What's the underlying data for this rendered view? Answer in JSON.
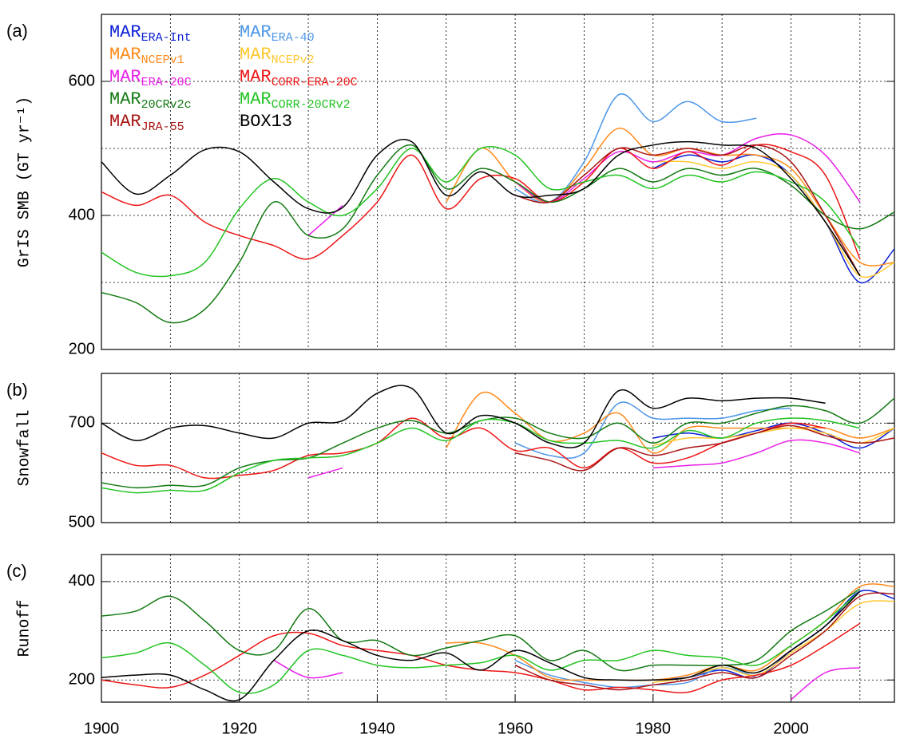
{
  "chart_data": [
    {
      "type": "line",
      "label": "(a)",
      "y_label": "GrIS SMB (GT yr⁻¹)",
      "legend": "upper left",
      "x": [
        1900,
        1905,
        1910,
        1915,
        1920,
        1925,
        1930,
        1935,
        1940,
        1945,
        1950,
        1955,
        1960,
        1965,
        1970,
        1975,
        1980,
        1985,
        1990,
        1995,
        2000,
        2005,
        2010,
        2015
      ],
      "xlim": [
        1900,
        2015
      ],
      "xgrid": [
        1910,
        1920,
        1930,
        1940,
        1950,
        1960,
        1970,
        1980,
        1990,
        2000,
        2010
      ],
      "ylim": [
        200,
        700
      ],
      "yticks": [
        200,
        400,
        600
      ],
      "yminor": [
        300,
        500,
        700
      ],
      "grid": true,
      "series": [
        {
          "name": "MAR",
          "sub": "ERA-Int",
          "color": "#0a1fd6",
          "values": [
            null,
            null,
            null,
            null,
            null,
            null,
            null,
            null,
            null,
            null,
            null,
            null,
            null,
            null,
            null,
            null,
            470,
            490,
            480,
            490,
            460,
            390,
            300,
            350
          ]
        },
        {
          "name": "MAR",
          "sub": "ERA-40",
          "color": "#4c96e8",
          "values": [
            null,
            null,
            null,
            null,
            null,
            null,
            null,
            null,
            null,
            null,
            null,
            null,
            440,
            420,
            480,
            580,
            540,
            570,
            540,
            545,
            null,
            null,
            null,
            null
          ]
        },
        {
          "name": "MAR",
          "sub": "NCEPv1",
          "color": "#ff8a1a",
          "values": [
            null,
            null,
            null,
            null,
            null,
            null,
            null,
            null,
            null,
            null,
            420,
            500,
            450,
            420,
            470,
            530,
            490,
            500,
            490,
            490,
            470,
            400,
            330,
            330
          ]
        },
        {
          "name": "MAR",
          "sub": "NCEPv2",
          "color": "#ffc830",
          "values": [
            null,
            null,
            null,
            null,
            null,
            null,
            null,
            null,
            null,
            null,
            null,
            null,
            null,
            null,
            null,
            null,
            480,
            480,
            470,
            480,
            460,
            390,
            310,
            330
          ]
        },
        {
          "name": "MAR",
          "sub": "ERA-20C",
          "color": "#e81ee8",
          "values": [
            null,
            null,
            null,
            null,
            null,
            null,
            370,
            415,
            null,
            null,
            null,
            null,
            450,
            420,
            455,
            495,
            480,
            495,
            490,
            515,
            520,
            490,
            420,
            null
          ]
        },
        {
          "name": "MAR",
          "sub": "CORR-ERA-20C",
          "color": "#ee1515",
          "values": [
            435,
            415,
            430,
            390,
            370,
            355,
            335,
            370,
            420,
            490,
            410,
            455,
            455,
            420,
            450,
            500,
            470,
            495,
            475,
            505,
            495,
            460,
            335,
            null
          ]
        },
        {
          "name": "MAR",
          "sub": "20CRv2c",
          "color": "#137a13",
          "values": [
            285,
            270,
            240,
            260,
            330,
            420,
            370,
            380,
            460,
            505,
            440,
            470,
            450,
            420,
            440,
            470,
            450,
            470,
            460,
            470,
            445,
            400,
            380,
            405
          ]
        },
        {
          "name": "MAR",
          "sub": "CORR-20CRv2",
          "color": "#22c422",
          "values": [
            345,
            315,
            310,
            330,
            410,
            455,
            420,
            400,
            440,
            500,
            450,
            500,
            490,
            440,
            450,
            460,
            440,
            460,
            450,
            465,
            450,
            420,
            350,
            null
          ]
        },
        {
          "name": "MAR",
          "sub": "JRA-55",
          "color": "#a81414",
          "values": [
            null,
            null,
            null,
            null,
            null,
            null,
            null,
            null,
            null,
            null,
            null,
            null,
            430,
            420,
            460,
            500,
            490,
            500,
            490,
            505,
            480,
            400,
            310,
            null
          ]
        },
        {
          "name": "BOX13",
          "color": "#000000",
          "values": [
            480,
            432,
            460,
            498,
            495,
            450,
            410,
            412,
            490,
            510,
            430,
            465,
            430,
            430,
            440,
            490,
            505,
            510,
            505,
            500,
            455,
            390,
            310,
            null
          ]
        }
      ]
    },
    {
      "type": "line",
      "label": "(b)",
      "y_label": "Snowfall",
      "x": [
        1900,
        1905,
        1910,
        1915,
        1920,
        1925,
        1930,
        1935,
        1940,
        1945,
        1950,
        1955,
        1960,
        1965,
        1970,
        1975,
        1980,
        1985,
        1990,
        1995,
        2000,
        2005,
        2010,
        2015
      ],
      "xlim": [
        1900,
        2015
      ],
      "xgrid": [
        1910,
        1920,
        1930,
        1940,
        1950,
        1960,
        1970,
        1980,
        1990,
        2000,
        2010
      ],
      "ylim": [
        500,
        800
      ],
      "yticks": [
        500,
        700
      ],
      "yminor": [
        600
      ],
      "grid": true,
      "series": [
        {
          "color": "#0a1fd6",
          "values": [
            null,
            null,
            null,
            null,
            null,
            null,
            null,
            null,
            null,
            null,
            null,
            null,
            null,
            null,
            null,
            null,
            670,
            680,
            670,
            685,
            700,
            680,
            650,
            690
          ]
        },
        {
          "color": "#4c96e8",
          "values": [
            null,
            null,
            null,
            null,
            null,
            null,
            null,
            null,
            null,
            null,
            null,
            null,
            660,
            635,
            640,
            740,
            710,
            710,
            710,
            725,
            730,
            null,
            null,
            null
          ]
        },
        {
          "color": "#ff8a1a",
          "values": [
            null,
            null,
            null,
            null,
            null,
            null,
            null,
            null,
            null,
            null,
            650,
            760,
            720,
            665,
            680,
            720,
            640,
            690,
            690,
            690,
            690,
            690,
            670,
            690
          ]
        },
        {
          "color": "#ffc830",
          "values": [
            null,
            null,
            null,
            null,
            null,
            null,
            null,
            null,
            null,
            null,
            null,
            null,
            null,
            null,
            null,
            null,
            655,
            670,
            670,
            680,
            690,
            680,
            660,
            690
          ]
        },
        {
          "color": "#e81ee8",
          "values": [
            null,
            null,
            null,
            null,
            null,
            null,
            590,
            610,
            null,
            null,
            null,
            null,
            null,
            null,
            null,
            null,
            610,
            615,
            620,
            640,
            665,
            660,
            640,
            null
          ]
        },
        {
          "color": "#ee1515",
          "values": [
            640,
            615,
            615,
            590,
            595,
            605,
            635,
            640,
            660,
            710,
            670,
            690,
            645,
            650,
            610,
            650,
            620,
            630,
            660,
            680,
            700,
            690,
            null,
            null
          ]
        },
        {
          "color": "#137a13",
          "values": [
            580,
            570,
            575,
            575,
            610,
            625,
            630,
            660,
            690,
            705,
            680,
            705,
            710,
            680,
            670,
            700,
            660,
            700,
            700,
            720,
            735,
            725,
            700,
            750
          ]
        },
        {
          "color": "#22c422",
          "values": [
            570,
            560,
            565,
            565,
            600,
            625,
            630,
            635,
            660,
            690,
            665,
            705,
            700,
            665,
            660,
            665,
            650,
            685,
            670,
            700,
            710,
            705,
            690,
            null
          ]
        },
        {
          "color": "#a81414",
          "values": [
            null,
            null,
            null,
            null,
            null,
            null,
            null,
            null,
            null,
            null,
            null,
            null,
            640,
            625,
            605,
            650,
            635,
            650,
            660,
            680,
            695,
            675,
            660,
            670
          ]
        },
        {
          "color": "#000000",
          "values": [
            700,
            665,
            690,
            695,
            680,
            670,
            700,
            705,
            760,
            770,
            680,
            715,
            700,
            660,
            660,
            765,
            730,
            750,
            745,
            750,
            750,
            740,
            null,
            null
          ]
        }
      ]
    },
    {
      "type": "line",
      "label": "(c)",
      "y_label": "Runoff",
      "x": [
        1900,
        1905,
        1910,
        1915,
        1920,
        1925,
        1930,
        1935,
        1940,
        1945,
        1950,
        1955,
        1960,
        1965,
        1970,
        1975,
        1980,
        1985,
        1990,
        1995,
        2000,
        2005,
        2010,
        2015
      ],
      "xlim": [
        1900,
        2015
      ],
      "xticks": [
        1900,
        1920,
        1940,
        1960,
        1980,
        2000
      ],
      "xgrid": [
        1910,
        1930,
        1950,
        1970,
        1990,
        2010
      ],
      "ylim": [
        155,
        455
      ],
      "yticks": [
        200,
        400
      ],
      "yminor": [
        300
      ],
      "grid": true,
      "series": [
        {
          "color": "#0a1fd6",
          "values": [
            null,
            null,
            null,
            null,
            null,
            null,
            null,
            null,
            null,
            null,
            null,
            null,
            null,
            null,
            null,
            null,
            200,
            205,
            220,
            205,
            260,
            310,
            380,
            365
          ]
        },
        {
          "color": "#4c96e8",
          "values": [
            null,
            null,
            null,
            null,
            null,
            null,
            null,
            null,
            null,
            null,
            null,
            null,
            240,
            210,
            195,
            185,
            190,
            195,
            225,
            205,
            null,
            null,
            null,
            null
          ]
        },
        {
          "color": "#ff8a1a",
          "values": [
            null,
            null,
            null,
            null,
            null,
            null,
            null,
            null,
            null,
            null,
            275,
            275,
            250,
            205,
            200,
            200,
            200,
            210,
            230,
            220,
            270,
            320,
            390,
            390
          ]
        },
        {
          "color": "#ffc830",
          "values": [
            null,
            null,
            null,
            null,
            null,
            null,
            null,
            null,
            null,
            null,
            null,
            null,
            null,
            null,
            null,
            null,
            195,
            205,
            225,
            210,
            255,
            300,
            355,
            360
          ]
        },
        {
          "color": "#e81ee8",
          "values": [
            null,
            null,
            null,
            null,
            null,
            240,
            205,
            215,
            null,
            null,
            null,
            null,
            null,
            null,
            null,
            null,
            null,
            null,
            null,
            null,
            160,
            215,
            225,
            null
          ]
        },
        {
          "color": "#ee1515",
          "values": [
            200,
            190,
            185,
            210,
            250,
            290,
            295,
            270,
            260,
            250,
            230,
            220,
            215,
            200,
            180,
            185,
            180,
            175,
            200,
            210,
            230,
            270,
            315,
            null
          ]
        },
        {
          "color": "#137a13",
          "values": [
            330,
            340,
            370,
            320,
            260,
            260,
            345,
            280,
            280,
            250,
            265,
            280,
            290,
            240,
            260,
            220,
            230,
            230,
            230,
            240,
            300,
            340,
            385,
            null
          ]
        },
        {
          "color": "#22c422",
          "values": [
            245,
            255,
            275,
            230,
            175,
            190,
            260,
            250,
            230,
            225,
            230,
            235,
            250,
            220,
            240,
            240,
            260,
            250,
            245,
            230,
            270,
            320,
            380,
            null
          ]
        },
        {
          "color": "#a81414",
          "values": [
            null,
            null,
            null,
            null,
            null,
            null,
            null,
            null,
            null,
            null,
            null,
            null,
            230,
            200,
            190,
            180,
            190,
            200,
            215,
            205,
            250,
            300,
            370,
            375
          ]
        },
        {
          "color": "#000000",
          "values": [
            205,
            210,
            210,
            180,
            160,
            240,
            300,
            280,
            250,
            240,
            255,
            220,
            260,
            235,
            205,
            200,
            200,
            205,
            230,
            215,
            260,
            310,
            380,
            null
          ]
        }
      ]
    }
  ]
}
